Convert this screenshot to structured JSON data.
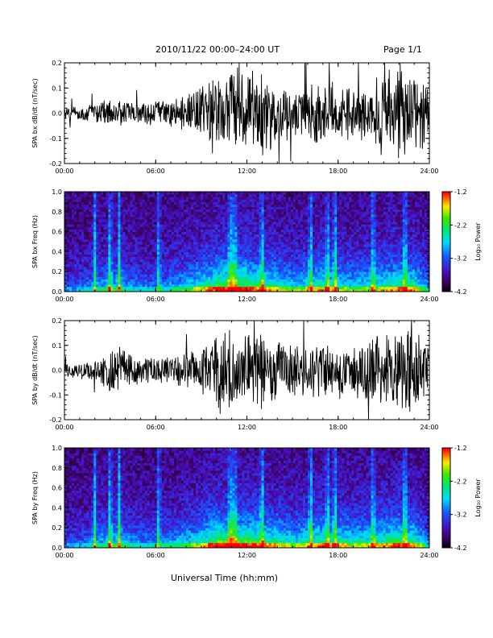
{
  "page": {
    "title": "2010/11/22  00:00–24:00 UT",
    "page_label": "Page 1/1",
    "x_axis_title": "Universal Time (hh:mm)"
  },
  "chart_data": [
    {
      "type": "line",
      "ylabel": "SPA bx dB/dt (nT/sec)",
      "xlim": [
        "00:00",
        "24:00"
      ],
      "ylim": [
        -0.2,
        0.2
      ],
      "x_ticks": [
        "00:00",
        "06:00",
        "12:00",
        "18:00",
        "24:00"
      ],
      "y_ticks": [
        "0.2",
        "0.1",
        "0.0",
        "-0.1",
        "-0.2"
      ],
      "envelope_hours": [
        0,
        1,
        2,
        3,
        4,
        5,
        6,
        7,
        8,
        9,
        10,
        11,
        12,
        13,
        14,
        15,
        16,
        17,
        18,
        19,
        20,
        21,
        22,
        23,
        24
      ],
      "envelope_amplitude": [
        0.03,
        0.035,
        0.045,
        0.06,
        0.055,
        0.05,
        0.05,
        0.06,
        0.08,
        0.12,
        0.2,
        0.2,
        0.2,
        0.18,
        0.15,
        0.1,
        0.12,
        0.15,
        0.12,
        0.13,
        0.15,
        0.18,
        0.2,
        0.2,
        0.1
      ]
    },
    {
      "type": "heatmap",
      "ylabel": "SPA bx Freq (Hz)",
      "xlim": [
        "00:00",
        "24:00"
      ],
      "ylim": [
        0.0,
        1.0
      ],
      "x_ticks": [
        "00:00",
        "06:00",
        "12:00",
        "18:00",
        "24:00"
      ],
      "y_ticks": [
        "1.0",
        "0.8",
        "0.6",
        "0.4",
        "0.2",
        "0.0"
      ],
      "colorbar": {
        "label": "Log₁₀ Power",
        "ticks": [
          "-1.2",
          "-2.2",
          "-3.2",
          "-4.2"
        ],
        "range": [
          -4.2,
          -1.2
        ]
      },
      "activity_hours": [
        0,
        1,
        2,
        3,
        4,
        5,
        6,
        7,
        8,
        9,
        10,
        11,
        12,
        13,
        14,
        15,
        16,
        17,
        18,
        19,
        20,
        21,
        22,
        23,
        24
      ],
      "activity_level": [
        0.3,
        0.35,
        0.45,
        0.6,
        0.5,
        0.4,
        0.4,
        0.5,
        0.6,
        0.75,
        0.9,
        1.0,
        0.95,
        0.85,
        0.75,
        0.6,
        0.7,
        0.8,
        0.7,
        0.65,
        0.7,
        0.75,
        0.85,
        0.8,
        0.4
      ],
      "streak_hours": [
        2.0,
        3.0,
        3.6,
        6.2,
        10.9,
        11.2,
        13.0,
        16.2,
        17.3,
        17.8,
        20.3,
        22.4
      ]
    },
    {
      "type": "line",
      "ylabel": "SPA by dB/dt (nT/sec)",
      "xlim": [
        "00:00",
        "24:00"
      ],
      "ylim": [
        -0.2,
        0.2
      ],
      "x_ticks": [
        "00:00",
        "06:00",
        "12:00",
        "18:00",
        "24:00"
      ],
      "y_ticks": [
        "0.2",
        "0.1",
        "0.0",
        "-0.1",
        "-0.2"
      ],
      "envelope_hours": [
        0,
        1,
        2,
        3,
        4,
        5,
        6,
        7,
        8,
        9,
        10,
        11,
        12,
        13,
        14,
        15,
        16,
        17,
        18,
        19,
        20,
        21,
        22,
        23,
        24
      ],
      "envelope_amplitude": [
        0.03,
        0.04,
        0.05,
        0.12,
        0.1,
        0.07,
        0.06,
        0.06,
        0.08,
        0.1,
        0.18,
        0.2,
        0.2,
        0.18,
        0.15,
        0.12,
        0.12,
        0.14,
        0.13,
        0.12,
        0.14,
        0.16,
        0.18,
        0.2,
        0.1
      ]
    },
    {
      "type": "heatmap",
      "ylabel": "SPA by Freq (Hz)",
      "xlim": [
        "00:00",
        "24:00"
      ],
      "ylim": [
        0.0,
        1.0
      ],
      "x_ticks": [
        "00:00",
        "06:00",
        "12:00",
        "18:00",
        "24:00"
      ],
      "y_ticks": [
        "1.0",
        "0.8",
        "0.6",
        "0.4",
        "0.2",
        "0.0"
      ],
      "colorbar": {
        "label": "Log₁₀ Power",
        "ticks": [
          "-1.2",
          "-2.2",
          "-3.2",
          "-4.2"
        ],
        "range": [
          -4.2,
          -1.2
        ]
      },
      "activity_hours": [
        0,
        1,
        2,
        3,
        4,
        5,
        6,
        7,
        8,
        9,
        10,
        11,
        12,
        13,
        14,
        15,
        16,
        17,
        18,
        19,
        20,
        21,
        22,
        23,
        24
      ],
      "activity_level": [
        0.3,
        0.35,
        0.45,
        0.65,
        0.55,
        0.45,
        0.45,
        0.5,
        0.6,
        0.75,
        0.95,
        1.0,
        0.95,
        0.85,
        0.8,
        0.65,
        0.75,
        0.85,
        0.8,
        0.7,
        0.75,
        0.8,
        0.9,
        0.85,
        0.4
      ],
      "streak_hours": [
        2.0,
        3.0,
        3.6,
        6.2,
        10.9,
        11.2,
        13.0,
        16.2,
        17.3,
        17.8,
        20.3,
        22.4
      ]
    }
  ]
}
